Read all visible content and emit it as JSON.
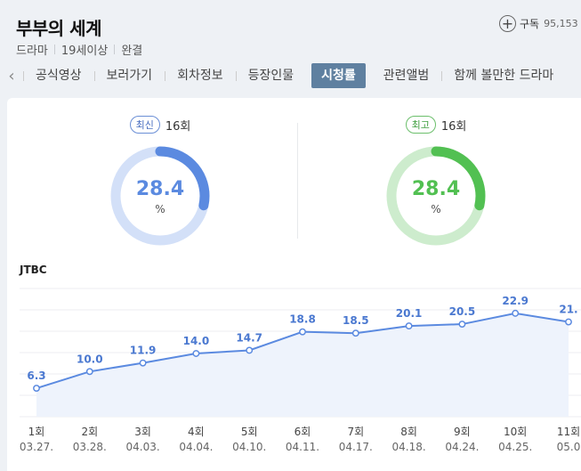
{
  "header": {
    "title": "부부의 세계",
    "genre": "드라마",
    "rating": "19세이상",
    "status": "완결",
    "subscribe_label": "구독",
    "subscribe_count": "95,153"
  },
  "tabs": [
    {
      "label": "공식영상"
    },
    {
      "label": "보러가기"
    },
    {
      "label": "회차정보"
    },
    {
      "label": "등장인물"
    },
    {
      "label": "시청률",
      "active": true
    },
    {
      "label": "관련앨범"
    },
    {
      "label": "함께 볼만한 드라마"
    }
  ],
  "latest": {
    "badge": "최신",
    "episode": "16회",
    "value": "28.4",
    "fraction": 0.284,
    "unit": "%",
    "color": "#5b8ae0",
    "track": "#d3e0f8"
  },
  "highest": {
    "badge": "최고",
    "episode": "16회",
    "value": "28.4",
    "fraction": 0.284,
    "unit": "%",
    "color": "#52c052",
    "track": "#cdeccd"
  },
  "network": "JTBC",
  "chart_data": {
    "type": "line",
    "categories": [
      "1회",
      "2회",
      "3회",
      "4회",
      "5회",
      "6회",
      "7회",
      "8회",
      "9회",
      "10회",
      "11회"
    ],
    "dates": [
      "03.27.",
      "03.28.",
      "04.03.",
      "04.04.",
      "04.10.",
      "04.11.",
      "04.17.",
      "04.18.",
      "04.24.",
      "04.25.",
      "05.0"
    ],
    "values": [
      6.3,
      10.0,
      11.9,
      14.0,
      14.7,
      18.8,
      18.5,
      20.1,
      20.5,
      22.9,
      21.0
    ],
    "labels": [
      "6.3",
      "10.0",
      "11.9",
      "14.0",
      "14.7",
      "18.8",
      "18.5",
      "20.1",
      "20.5",
      "22.9",
      "21."
    ],
    "ylim": [
      0,
      28.4
    ],
    "grid": true,
    "color": "#5b8ae0"
  }
}
